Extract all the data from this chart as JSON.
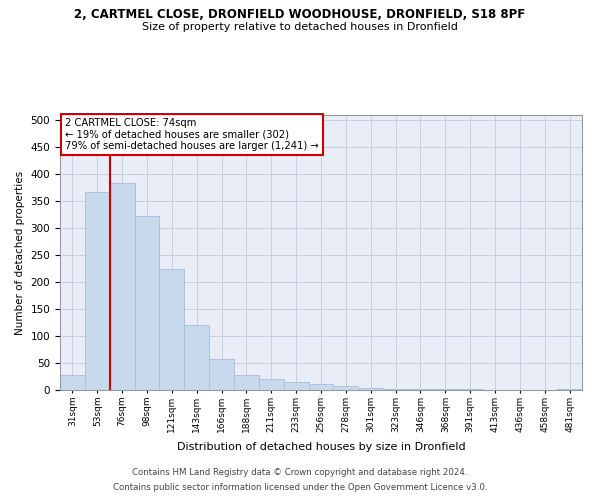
{
  "title_line1": "2, CARTMEL CLOSE, DRONFIELD WOODHOUSE, DRONFIELD, S18 8PF",
  "title_line2": "Size of property relative to detached houses in Dronfield",
  "xlabel": "Distribution of detached houses by size in Dronfield",
  "ylabel": "Number of detached properties",
  "footer_line1": "Contains HM Land Registry data © Crown copyright and database right 2024.",
  "footer_line2": "Contains public sector information licensed under the Open Government Licence v3.0.",
  "categories": [
    "31sqm",
    "53sqm",
    "76sqm",
    "98sqm",
    "121sqm",
    "143sqm",
    "166sqm",
    "188sqm",
    "211sqm",
    "233sqm",
    "256sqm",
    "278sqm",
    "301sqm",
    "323sqm",
    "346sqm",
    "368sqm",
    "391sqm",
    "413sqm",
    "436sqm",
    "458sqm",
    "481sqm"
  ],
  "values": [
    28,
    368,
    383,
    322,
    225,
    120,
    57,
    28,
    20,
    14,
    12,
    8,
    4,
    2,
    1,
    1,
    1,
    0,
    0,
    0,
    2
  ],
  "bar_color": "#c9d9ec",
  "bar_edge_color": "#a8c4de",
  "grid_color": "#c8d0e0",
  "background_color": "#e8edf8",
  "marker_label": "2 CARTMEL CLOSE: 74sqm",
  "annotation_line1": "← 19% of detached houses are smaller (302)",
  "annotation_line2": "79% of semi-detached houses are larger (1,241) →",
  "marker_color": "#cc0000",
  "annotation_box_color": "#ffffff",
  "annotation_box_edge_color": "#cc0000",
  "ylim": [
    0,
    510
  ],
  "yticks": [
    0,
    50,
    100,
    150,
    200,
    250,
    300,
    350,
    400,
    450,
    500
  ]
}
